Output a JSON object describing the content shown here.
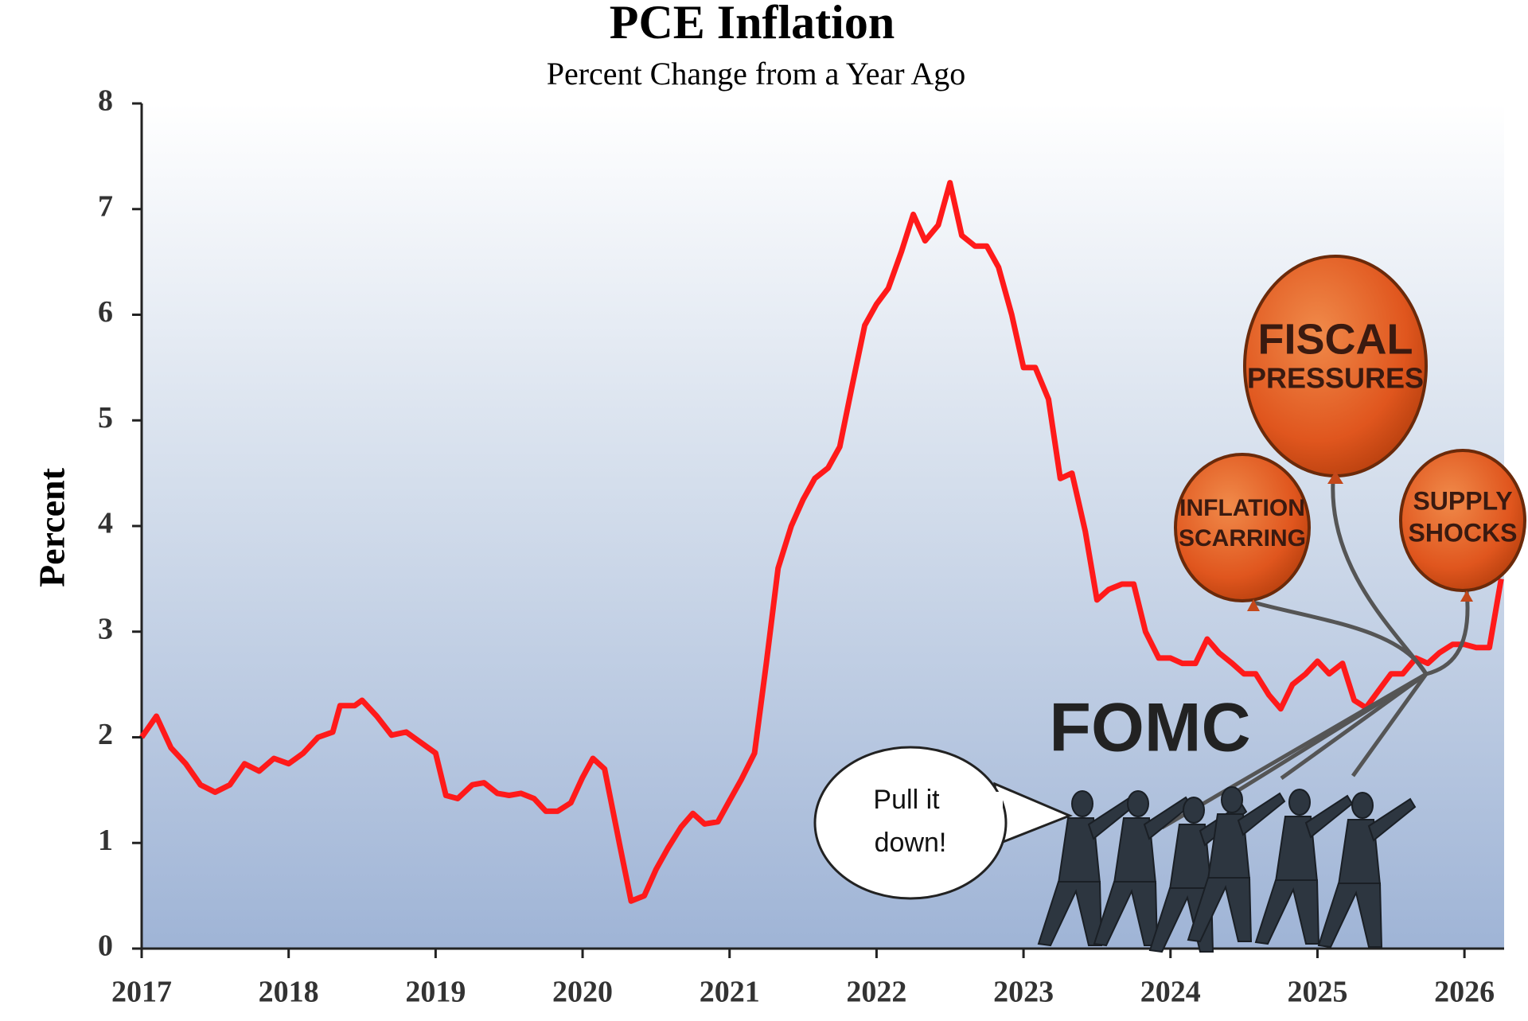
{
  "chart_data": {
    "type": "line",
    "title": "PCE Inflation",
    "subtitle": "Percent Change from a Year Ago",
    "y_label": "Percent",
    "color": "#ff1a1a",
    "x": [
      2017.0,
      2017.1,
      2017.2,
      2017.3,
      2017.4,
      2017.5,
      2017.6,
      2017.7,
      2017.8,
      2017.9,
      2018.0,
      2018.1,
      2018.2,
      2018.3,
      2018.35,
      2018.45,
      2018.5,
      2018.6,
      2018.7,
      2018.8,
      2018.9,
      2019.0,
      2019.07,
      2019.15,
      2019.25,
      2019.33,
      2019.42,
      2019.5,
      2019.58,
      2019.67,
      2019.75,
      2019.83,
      2019.92,
      2020.0,
      2020.07,
      2020.15,
      2020.25,
      2020.33,
      2020.42,
      2020.5,
      2020.58,
      2020.67,
      2020.75,
      2020.83,
      2020.92,
      2021.0,
      2021.08,
      2021.17,
      2021.25,
      2021.33,
      2021.42,
      2021.5,
      2021.58,
      2021.67,
      2021.75,
      2021.83,
      2021.92,
      2022.0,
      2022.08,
      2022.17,
      2022.25,
      2022.33,
      2022.42,
      2022.5,
      2022.58,
      2022.67,
      2022.75,
      2022.83,
      2022.92,
      2023.0,
      2023.08,
      2023.17,
      2023.25,
      2023.33,
      2023.42,
      2023.5,
      2023.58,
      2023.67,
      2023.75,
      2023.83,
      2023.92,
      2024.0,
      2024.08,
      2024.17,
      2024.25,
      2024.33,
      2024.42,
      2024.5,
      2024.58,
      2024.67,
      2024.75,
      2024.83,
      2024.92,
      2025.0,
      2025.08,
      2025.17,
      2025.25,
      2025.33,
      2025.42,
      2025.5,
      2025.58,
      2025.67,
      2025.75,
      2025.83,
      2025.92,
      2026.0,
      2026.08,
      2026.17,
      2026.25
    ],
    "values": [
      2.0,
      2.2,
      1.9,
      1.75,
      1.55,
      1.48,
      1.55,
      1.75,
      1.68,
      1.8,
      1.75,
      1.85,
      2.0,
      2.05,
      2.3,
      2.3,
      2.35,
      2.2,
      2.02,
      2.05,
      1.95,
      1.85,
      1.45,
      1.42,
      1.55,
      1.57,
      1.47,
      1.45,
      1.47,
      1.42,
      1.3,
      1.3,
      1.38,
      1.62,
      1.8,
      1.7,
      1.0,
      0.45,
      0.5,
      0.75,
      0.95,
      1.15,
      1.28,
      1.18,
      1.2,
      1.4,
      1.6,
      1.85,
      2.7,
      3.6,
      4.0,
      4.25,
      4.45,
      4.55,
      4.75,
      5.3,
      5.9,
      6.1,
      6.25,
      6.6,
      6.95,
      6.7,
      6.85,
      7.25,
      6.75,
      6.65,
      6.65,
      6.45,
      6.0,
      5.5,
      5.5,
      5.2,
      4.45,
      4.5,
      3.95,
      3.3,
      3.4,
      3.45,
      3.45,
      3.0,
      2.75,
      2.75,
      2.7,
      2.7,
      2.93,
      2.8,
      2.7,
      2.6,
      2.6,
      2.4,
      2.27,
      2.5,
      2.6,
      2.72,
      2.6,
      2.7,
      2.35,
      2.28,
      2.45,
      2.6,
      2.6,
      2.75,
      2.7,
      2.8,
      2.88,
      2.88,
      2.85,
      2.85,
      3.5
    ],
    "xlim": [
      2017,
      2026.27
    ],
    "xticks": [
      2017,
      2018,
      2019,
      2020,
      2021,
      2022,
      2023,
      2024,
      2025,
      2026
    ],
    "ylim": [
      0,
      8
    ],
    "yticks": [
      0,
      1,
      2,
      3,
      4,
      5,
      6,
      7,
      8
    ],
    "annotations": {
      "fiscal": [
        "FISCAL",
        "PRESSURES"
      ],
      "inflation": [
        "INFLATION",
        "SCARRING"
      ],
      "supply": [
        "SUPPLY",
        "SHOCKS"
      ],
      "fomc": "FOMC",
      "speech": [
        "Pull it",
        "down!"
      ]
    }
  }
}
